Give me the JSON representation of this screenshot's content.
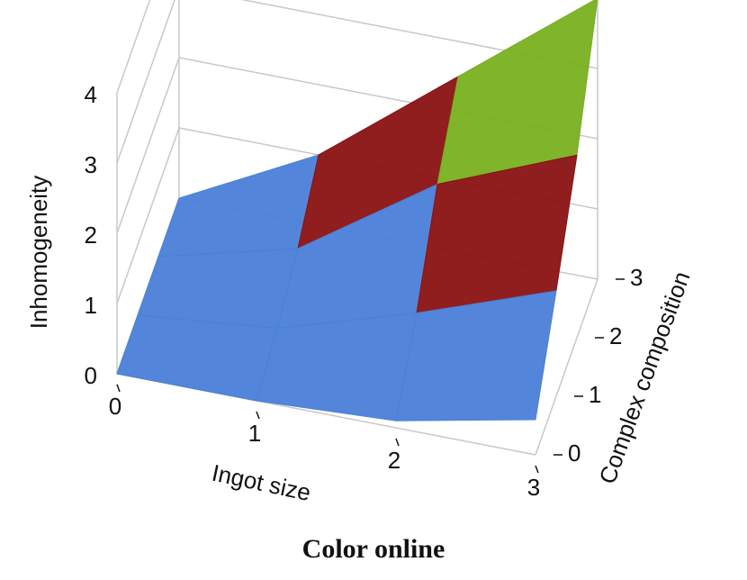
{
  "chart_data": {
    "type": "surface3d",
    "x_label": "Ingot size",
    "y_label": "Complex composition",
    "z_label": "Inhomogeneity",
    "caption": "Color online",
    "x": [
      0,
      1,
      2,
      3
    ],
    "y": [
      0,
      1,
      2,
      3
    ],
    "z": [
      [
        0,
        0,
        0,
        0
      ],
      [
        0,
        0.2,
        0.5,
        1.0
      ],
      [
        0.1,
        0.8,
        1.8,
        2.5
      ],
      [
        0.5,
        1.5,
        2.6,
        4.0
      ]
    ],
    "xlim": [
      0,
      3
    ],
    "ylim": [
      0,
      3
    ],
    "zlim": [
      0,
      4
    ],
    "xticks": [
      0,
      1,
      2,
      3
    ],
    "yticks": [
      0,
      1,
      2,
      3
    ],
    "zticks": [
      0,
      1,
      2,
      3,
      4
    ],
    "colors": [
      "#4a80d8",
      "#8a1212",
      "#78b020",
      "#3a2eb8"
    ],
    "grid": true
  }
}
